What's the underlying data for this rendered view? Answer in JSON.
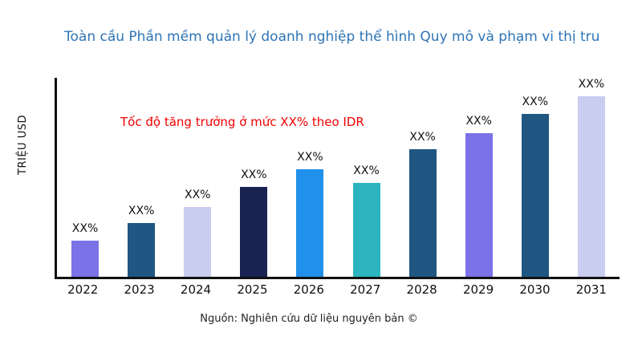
{
  "title": "Toàn cầu Phần mềm quản lý doanh nghiệp thể hình Quy mô và phạm vi thị tru",
  "annotation": "Tốc độ tăng trưởng ở mức XX% theo IDR",
  "ylabel": "TRIỆU USD",
  "source": "Nguồn: Nghiên cứu dữ liệu nguyên bản ©",
  "colors": {
    "title": "#2e74b5",
    "annotation": "#f00000",
    "axis": "#111111"
  },
  "chart_data": {
    "type": "bar",
    "title": "Toàn cầu Phần mềm quản lý doanh nghiệp thể hình Quy mô và phạm vi thị tru",
    "xlabel": "",
    "ylabel": "TRIỆU USD",
    "categories": [
      "2022",
      "2023",
      "2024",
      "2025",
      "2026",
      "2027",
      "2028",
      "2029",
      "2030",
      "2031"
    ],
    "values": [
      18,
      27,
      35,
      45,
      54,
      47,
      64,
      72,
      82,
      91
    ],
    "ylim": [
      0,
      100
    ],
    "values_note": "relative bar heights in % of plot height; actual values masked as XX% in source image",
    "bar_labels": [
      "XX%",
      "XX%",
      "XX%",
      "XX%",
      "XX%",
      "XX%",
      "XX%",
      "XX%",
      "XX%",
      "XX%"
    ],
    "colors": [
      "#7b72e8",
      "#1f5782",
      "#c9cef0",
      "#182352",
      "#2090ea",
      "#2cb5be",
      "#1f5782",
      "#7b72e8",
      "#1f5782",
      "#c9cef0"
    ],
    "grid": false,
    "legend": "none",
    "annotation": "Tốc độ tăng trưởng ở mức XX% theo IDR"
  }
}
